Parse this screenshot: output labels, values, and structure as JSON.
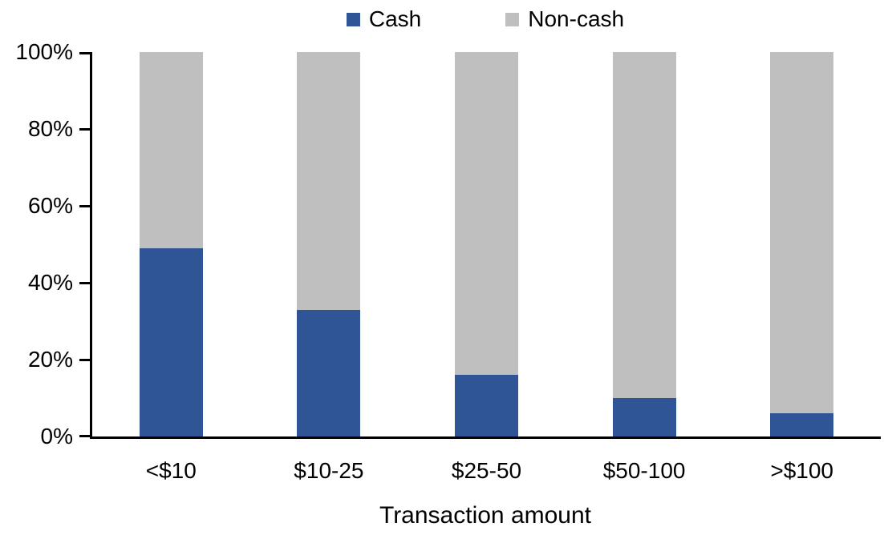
{
  "chart_data": {
    "type": "bar",
    "stacked": true,
    "percent_stacked": true,
    "title": "",
    "xlabel": "Transaction amount",
    "ylabel": "",
    "categories": [
      "<$10",
      "$10-25",
      "$25-50",
      "$50-100",
      ">$100"
    ],
    "series": [
      {
        "name": "Cash",
        "color": "#2F5597",
        "values": [
          49,
          33,
          16,
          10,
          6
        ]
      },
      {
        "name": "Non-cash",
        "color": "#BFBFBF",
        "values": [
          51,
          67,
          84,
          90,
          94
        ]
      }
    ],
    "ylim": [
      0,
      100
    ],
    "y_ticks": [
      {
        "value": 0,
        "label": "0%"
      },
      {
        "value": 20,
        "label": "20%"
      },
      {
        "value": 40,
        "label": "40%"
      },
      {
        "value": 60,
        "label": "60%"
      },
      {
        "value": 80,
        "label": "80%"
      },
      {
        "value": 100,
        "label": "100%"
      }
    ],
    "legend_position": "top",
    "grid": false,
    "axis_color": "#000000"
  }
}
